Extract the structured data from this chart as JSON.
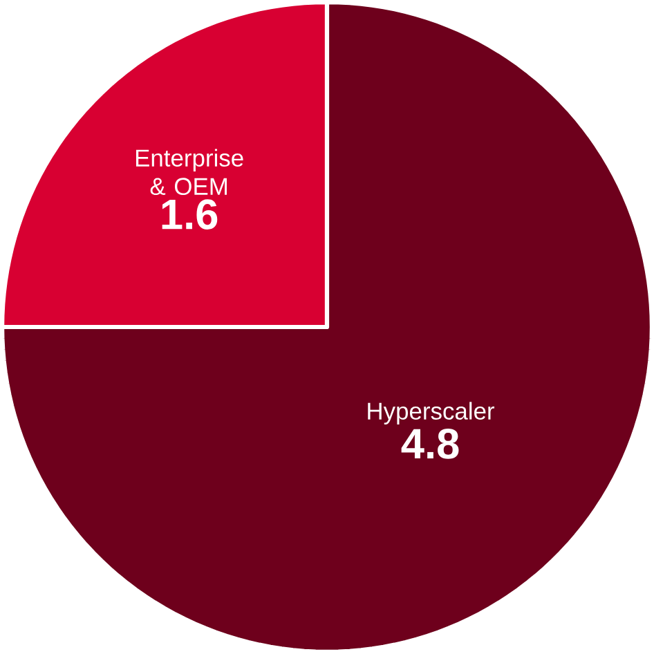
{
  "chart_data": {
    "type": "pie",
    "categories": [
      "Enterprise & OEM",
      "Hyperscaler"
    ],
    "values": [
      1.6,
      4.8
    ],
    "colors": [
      "#d80032",
      "#6e001c"
    ],
    "data_labels": true
  }
}
